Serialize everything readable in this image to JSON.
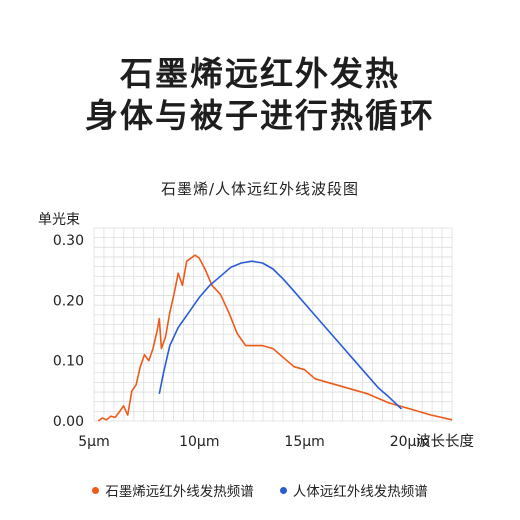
{
  "headline": {
    "line1": "石墨烯远红外发热",
    "line2": "身体与被子进行热循环"
  },
  "chart_data": {
    "type": "line",
    "title": "石墨烯/人体远红外线波段图",
    "ylabel": "单光束",
    "xlabel": "波长长度",
    "x_ticks": [
      "5μm",
      "10μm",
      "15μm",
      "20μm"
    ],
    "x_tick_values": [
      5,
      10,
      15,
      20
    ],
    "y_ticks": [
      "0.00",
      "0.10",
      "0.20",
      "0.30"
    ],
    "y_tick_values": [
      0,
      0.1,
      0.2,
      0.3
    ],
    "xlim": [
      5,
      22
    ],
    "ylim": [
      0,
      0.32
    ],
    "grid": true,
    "legend_position": "bottom",
    "series": [
      {
        "name": "石墨烯远红外线发热频谱",
        "color": "#ee5a1a",
        "x": [
          5.2,
          5.4,
          5.6,
          5.8,
          6.0,
          6.2,
          6.4,
          6.6,
          6.8,
          7.0,
          7.2,
          7.4,
          7.6,
          7.8,
          8.0,
          8.1,
          8.2,
          8.4,
          8.6,
          8.8,
          9.0,
          9.2,
          9.4,
          9.6,
          9.8,
          10.0,
          10.3,
          10.6,
          11.0,
          11.4,
          11.8,
          12.2,
          12.6,
          13.0,
          13.5,
          14.0,
          14.5,
          15.0,
          15.5,
          16.0,
          16.5,
          17.0,
          17.5,
          18.0,
          19.0,
          20.0,
          21.0,
          22.0
        ],
        "y": [
          0.0,
          0.005,
          0.002,
          0.008,
          0.006,
          0.015,
          0.025,
          0.01,
          0.05,
          0.06,
          0.09,
          0.11,
          0.1,
          0.12,
          0.15,
          0.17,
          0.12,
          0.14,
          0.18,
          0.21,
          0.245,
          0.225,
          0.265,
          0.27,
          0.275,
          0.27,
          0.25,
          0.225,
          0.21,
          0.18,
          0.145,
          0.125,
          0.125,
          0.125,
          0.12,
          0.105,
          0.09,
          0.085,
          0.07,
          0.065,
          0.06,
          0.055,
          0.05,
          0.045,
          0.03,
          0.02,
          0.01,
          0.002
        ]
      },
      {
        "name": "人体远红外线发热频谱",
        "color": "#2a5bd7",
        "x": [
          8.1,
          8.3,
          8.6,
          9.0,
          9.5,
          10.0,
          10.5,
          11.0,
          11.5,
          12.0,
          12.5,
          13.0,
          13.5,
          14.0,
          14.5,
          15.0,
          15.5,
          16.0,
          16.5,
          17.0,
          17.5,
          18.0,
          18.5,
          19.0,
          19.6
        ],
        "y": [
          0.045,
          0.08,
          0.125,
          0.155,
          0.18,
          0.205,
          0.225,
          0.24,
          0.255,
          0.262,
          0.265,
          0.262,
          0.252,
          0.235,
          0.215,
          0.195,
          0.175,
          0.155,
          0.135,
          0.115,
          0.095,
          0.075,
          0.055,
          0.04,
          0.02
        ]
      }
    ]
  }
}
